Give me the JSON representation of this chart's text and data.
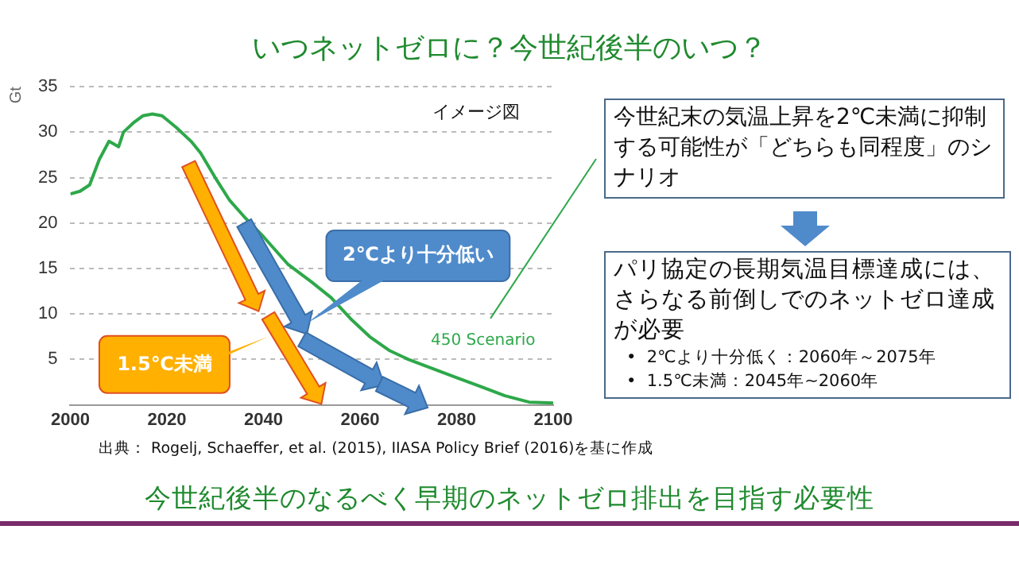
{
  "chart_data": {
    "type": "line",
    "title": "いつネットゼロに？今世紀後半のいつ？",
    "ylabel": "Gt",
    "series": [
      {
        "name": "450 Scenario",
        "color": "#2ea84a",
        "x": [
          2000,
          2002,
          2004,
          2006,
          2008,
          2010,
          2011,
          2013,
          2015,
          2017,
          2019,
          2022,
          2025,
          2027,
          2030,
          2033,
          2036,
          2040,
          2045,
          2050,
          2054,
          2058,
          2062,
          2066,
          2070,
          2074,
          2080,
          2085,
          2090,
          2095,
          2100
        ],
        "values": [
          23.2,
          23.5,
          24.2,
          27,
          29,
          28.4,
          30,
          31,
          31.8,
          32,
          31.8,
          30.5,
          29,
          27.7,
          25,
          22.5,
          20.7,
          18.5,
          15.5,
          13.5,
          11.8,
          9.5,
          7.5,
          6,
          5,
          4.2,
          3,
          2,
          1,
          0.3,
          0.2
        ]
      }
    ],
    "xlim": [
      2000,
      2100
    ],
    "xticks": [
      2000,
      2020,
      2040,
      2060,
      2080,
      2100
    ],
    "ylim": [
      0,
      35
    ],
    "yticks": [
      5,
      10,
      15,
      20,
      25,
      30,
      35
    ],
    "grid": "y",
    "marker": "none",
    "line_style": "solid",
    "annotations": [
      "イメージ図",
      "2℃より十分低い",
      "1.5℃未満",
      "今世紀末の気温上昇を2℃未満に抑制する可能性が「どちらも同程度」のシナリオ",
      "パリ協定の長期気温目標達成には、さらなる前倒しでのネットゼロ達成が必要",
      "•  2℃より十分低く：2060年～2075年",
      "•  1.5℃未満：2045年~2060年",
      "出典： Rogelj, Schaeffer, et al. (2015), IIASA Policy Brief (2016)を基に作成",
      "今世紀後半のなるべく早期のネットゼロ排出を目指す必要性"
    ]
  }
}
